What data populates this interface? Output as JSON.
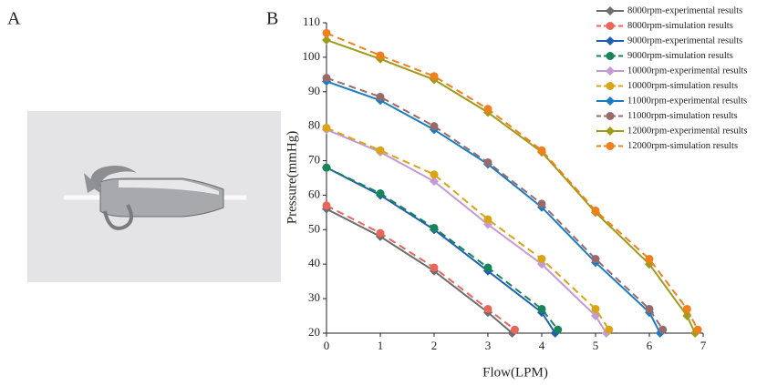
{
  "panels": {
    "a": "A",
    "b": "B"
  },
  "chart_data": {
    "type": "line",
    "xlabel": "Flow(LPM)",
    "ylabel": "Pressure(mmHg)",
    "xlim": [
      0,
      7
    ],
    "xticks": [
      0,
      1,
      2,
      3,
      4,
      5,
      6,
      7
    ],
    "ylim": [
      20,
      110
    ],
    "yticks": [
      20,
      30,
      40,
      50,
      60,
      70,
      80,
      90,
      100,
      110
    ],
    "grid": false,
    "legend": "top-right",
    "series": [
      {
        "name": "8000rpm-experimental results",
        "color": "#6d6d6d",
        "marker": "diamond",
        "style": "solid",
        "x": [
          0,
          1,
          2,
          3,
          3.45
        ],
        "values": [
          56,
          48,
          38,
          26,
          20
        ]
      },
      {
        "name": "8000rpm-simulation results",
        "color": "#e8665a",
        "marker": "circle",
        "style": "dashed",
        "x": [
          0,
          1,
          2,
          3,
          3.5
        ],
        "values": [
          57,
          49,
          39,
          27,
          21
        ]
      },
      {
        "name": "9000rpm-experimental results",
        "color": "#1f5fb4",
        "marker": "diamond",
        "style": "solid",
        "x": [
          0,
          1,
          2,
          3,
          4,
          4.25
        ],
        "values": [
          68,
          60,
          50,
          38,
          26,
          20
        ]
      },
      {
        "name": "9000rpm-simulation results",
        "color": "#17845a",
        "marker": "circle",
        "style": "dashed",
        "x": [
          0,
          1,
          2,
          3,
          4,
          4.3
        ],
        "values": [
          68,
          60.5,
          50.5,
          39,
          27,
          21
        ]
      },
      {
        "name": "10000rpm-experimental results",
        "color": "#c39ad6",
        "marker": "diamond",
        "style": "solid",
        "x": [
          0,
          1,
          2,
          3,
          4,
          5,
          5.2
        ],
        "values": [
          79,
          72.5,
          64,
          51.5,
          40,
          25,
          20
        ]
      },
      {
        "name": "10000rpm-simulation results",
        "color": "#d9a514",
        "marker": "circle",
        "style": "dashed",
        "x": [
          0,
          1,
          2,
          3,
          4,
          5,
          5.25
        ],
        "values": [
          79.5,
          73,
          66,
          53,
          41.5,
          27,
          21
        ]
      },
      {
        "name": "11000rpm-experimental results",
        "color": "#1a7cc2",
        "marker": "diamond",
        "style": "solid",
        "x": [
          0,
          1,
          2,
          3,
          4,
          5,
          6,
          6.2
        ],
        "values": [
          93,
          87.5,
          79,
          69,
          56.5,
          40.5,
          26,
          20
        ]
      },
      {
        "name": "11000rpm-simulation results",
        "color": "#9a6a6a",
        "marker": "circle",
        "style": "dashed",
        "x": [
          0,
          1,
          2,
          3,
          4,
          5,
          6,
          6.25
        ],
        "values": [
          94,
          88.5,
          80,
          69.5,
          57.5,
          41.5,
          27,
          21
        ]
      },
      {
        "name": "12000rpm-experimental results",
        "color": "#a19a1a",
        "marker": "diamond",
        "style": "solid",
        "x": [
          0,
          1,
          2,
          3,
          4,
          5,
          6,
          6.7,
          6.85
        ],
        "values": [
          105,
          99.5,
          93.5,
          84,
          72.5,
          55,
          40,
          25,
          20
        ]
      },
      {
        "name": "12000rpm-simulation results",
        "color": "#f07f1e",
        "marker": "circle",
        "style": "dashed",
        "x": [
          0,
          1,
          2,
          3,
          4,
          5,
          6,
          6.7,
          6.9
        ],
        "values": [
          107,
          100.5,
          94.5,
          85,
          73,
          55.5,
          41.5,
          27,
          21
        ]
      }
    ]
  }
}
